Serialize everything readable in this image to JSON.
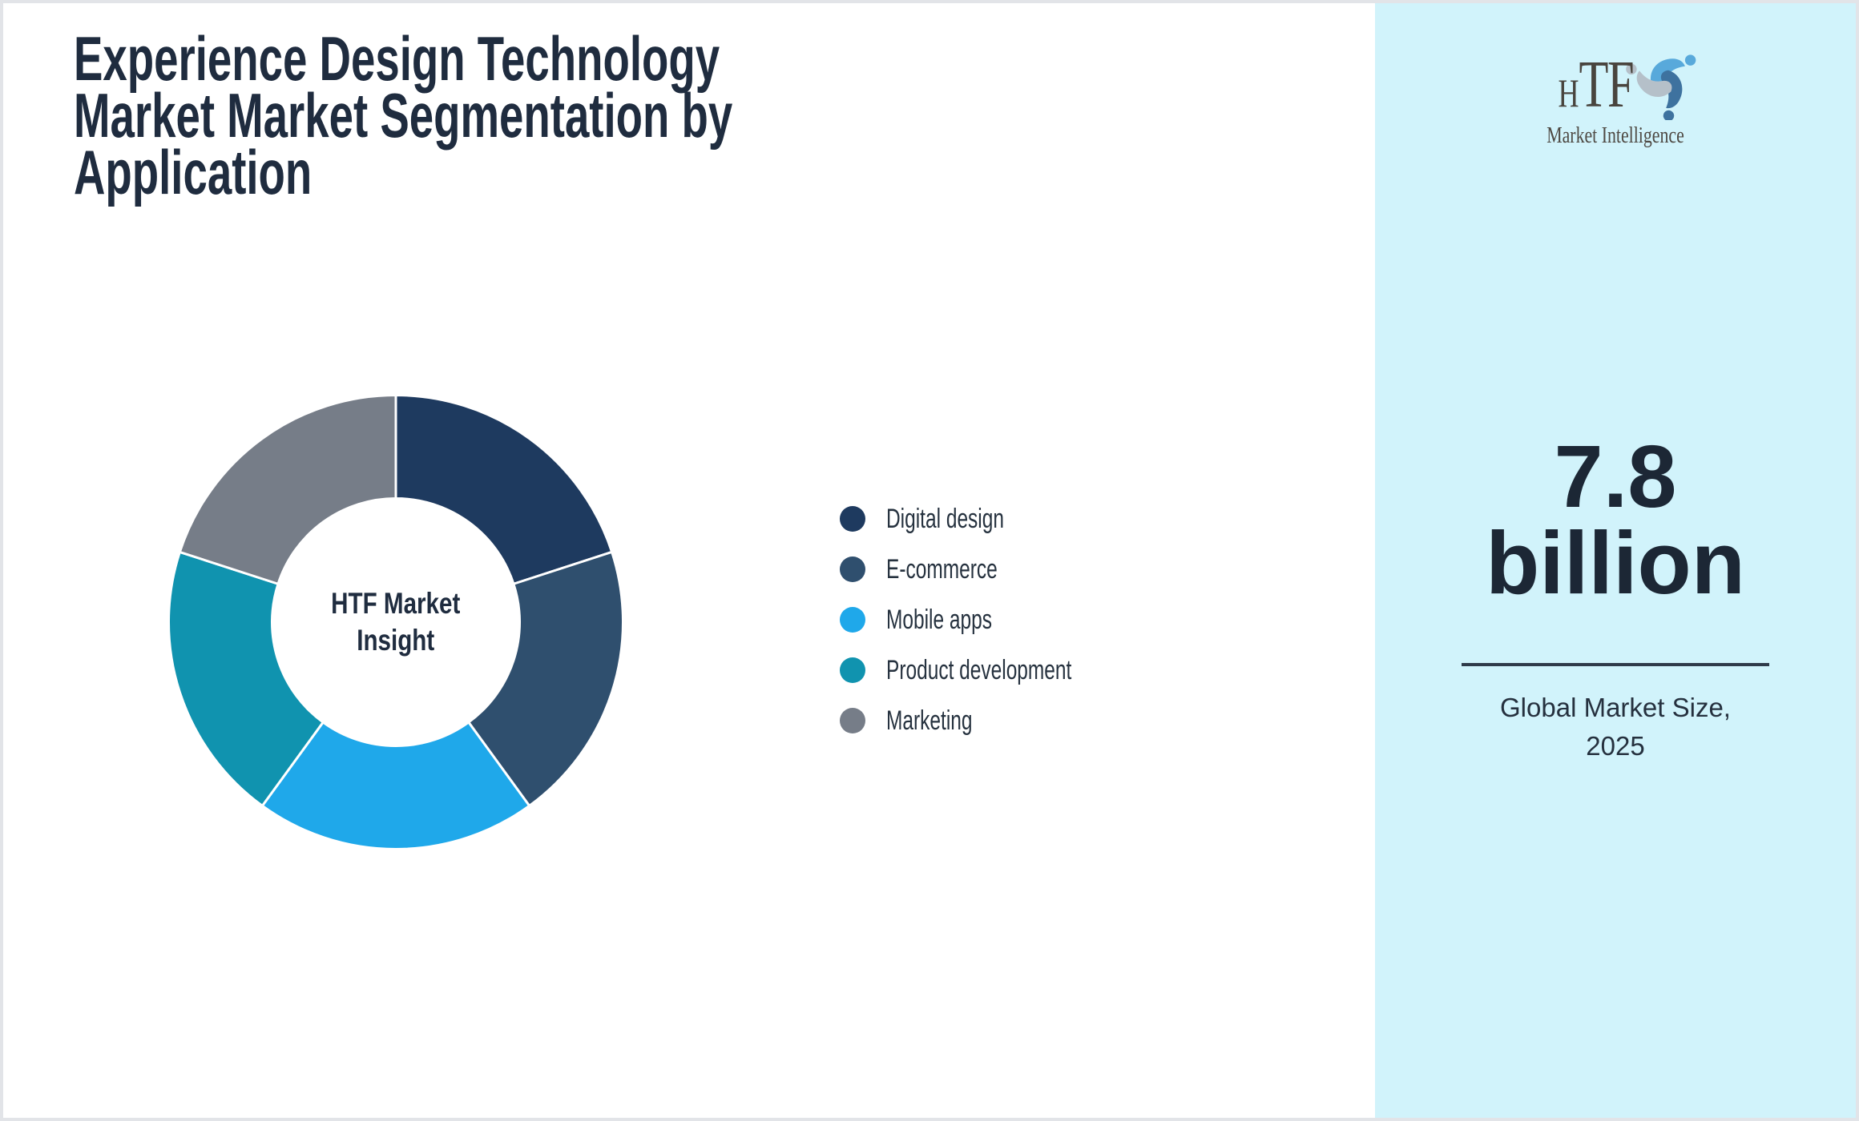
{
  "page": {
    "background": "#FFFFFF",
    "border_color": "#E2E4E8"
  },
  "title": "Experience Design Technology\nMarket Market Segmentation by\nApplication",
  "title_color": "#1F2C3F",
  "chart_data": {
    "type": "pie",
    "subtype": "donut",
    "title": "Experience Design Technology Market Market Segmentation by Application",
    "center_label": "HTF Market\nInsight",
    "start_angle_deg": 0,
    "direction": "clockwise",
    "inner_radius_ratio": 0.545,
    "slice_gap_color": "#FFFFFF",
    "legend_position": "right",
    "units": "share of market (approx. equal slices, %)",
    "categories": [
      "Digital design",
      "E-commerce",
      "Mobile apps",
      "Product development",
      "Marketing"
    ],
    "values": [
      20,
      20,
      20,
      20,
      20
    ],
    "colors": [
      "#1E3A5F",
      "#2F4F6E",
      "#1FA8EA",
      "#1093AF",
      "#767D88"
    ]
  },
  "sidebar": {
    "background": "#D1F3FB",
    "logo": {
      "abbr_first": "H",
      "abbr_rest": "TF",
      "subtext": "Market Intelligence",
      "text_color": "#49443E",
      "figure_colors": [
        "#58A9DB",
        "#3E729F",
        "#B5C0C9"
      ]
    },
    "stat_value": "7.8",
    "stat_unit": "billion",
    "stat_color": "#1C2735",
    "divider_color": "#2E3A49",
    "caption": "Global Market Size,\n2025"
  }
}
